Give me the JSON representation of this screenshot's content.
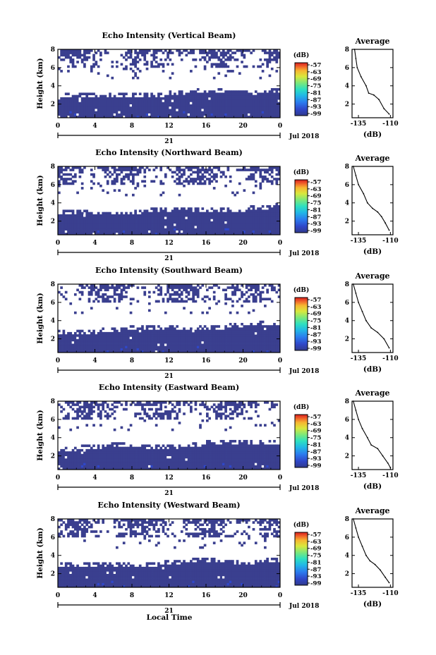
{
  "chart_data": [
    {
      "type": "heatmap",
      "title": "Echo Intensity (Vertical Beam)",
      "ylabel": "Height (km)",
      "xticks": [
        "0",
        "4",
        "8",
        "12",
        "16",
        "20",
        "0"
      ],
      "xlim": [
        0,
        24
      ],
      "yticks": [
        "2",
        "4",
        "6",
        "8"
      ],
      "ylim": [
        0.5,
        8
      ],
      "date_labels": {
        "day": "21",
        "month_year": "Jul 2018"
      },
      "colorbar": {
        "unit": "(dB)",
        "ticks": [
          "-57",
          "-63",
          "-69",
          "-75",
          "-81",
          "-87",
          "-93",
          "-99"
        ],
        "range": [
          -99,
          -57
        ]
      },
      "profile": {
        "title": "Average",
        "xlabel": "(dB)",
        "xticks": [
          "-135",
          "-110"
        ],
        "xlim": [
          -140,
          -108
        ],
        "yticks": [
          "2",
          "4",
          "6",
          "8"
        ],
        "ylim": [
          0.5,
          8
        ],
        "points": [
          [
            -138,
            8.0
          ],
          [
            -137,
            7.0
          ],
          [
            -136,
            6.0
          ],
          [
            -133,
            5.0
          ],
          [
            -129,
            4.0
          ],
          [
            -127,
            3.2
          ],
          [
            -123,
            3.0
          ],
          [
            -119,
            2.5
          ],
          [
            -115,
            1.5
          ],
          [
            -111,
            0.9
          ]
        ]
      }
    },
    {
      "type": "heatmap",
      "title": "Echo Intensity (Northward Beam)",
      "ylabel": "Height (km)",
      "xticks": [
        "0",
        "4",
        "8",
        "12",
        "16",
        "20",
        "0"
      ],
      "xlim": [
        0,
        24
      ],
      "yticks": [
        "2",
        "4",
        "6",
        "8"
      ],
      "ylim": [
        0.5,
        8
      ],
      "date_labels": {
        "day": "21",
        "month_year": "Jul 2018"
      },
      "colorbar": {
        "unit": "(dB)",
        "ticks": [
          "-57",
          "-63",
          "-69",
          "-75",
          "-81",
          "-87",
          "-93",
          "-99"
        ],
        "range": [
          -99,
          -57
        ]
      },
      "profile": {
        "title": "Average",
        "xlabel": "(dB)",
        "xticks": [
          "-135",
          "-110"
        ],
        "xlim": [
          -140,
          -108
        ],
        "yticks": [
          "2",
          "4",
          "6",
          "8"
        ],
        "ylim": [
          0.5,
          8
        ],
        "points": [
          [
            -139,
            8.0
          ],
          [
            -137,
            7.0
          ],
          [
            -135,
            6.0
          ],
          [
            -131,
            5.0
          ],
          [
            -128,
            4.0
          ],
          [
            -124,
            3.4
          ],
          [
            -120,
            3.0
          ],
          [
            -117,
            2.5
          ],
          [
            -114,
            1.8
          ],
          [
            -111,
            1.0
          ]
        ]
      }
    },
    {
      "type": "heatmap",
      "title": "Echo Intensity (Southward Beam)",
      "ylabel": "Height (km)",
      "xticks": [
        "0",
        "4",
        "8",
        "12",
        "16",
        "20",
        "0"
      ],
      "xlim": [
        0,
        24
      ],
      "yticks": [
        "2",
        "4",
        "6",
        "8"
      ],
      "ylim": [
        0.5,
        8
      ],
      "date_labels": {
        "day": "21",
        "month_year": "Jul 2018"
      },
      "colorbar": {
        "unit": "(dB)",
        "ticks": [
          "-57",
          "-63",
          "-69",
          "-75",
          "-81",
          "-87",
          "-93",
          "-99"
        ],
        "range": [
          -99,
          -57
        ]
      },
      "profile": {
        "title": "Average",
        "xlabel": "(dB)",
        "xticks": [
          "-135",
          "-110"
        ],
        "xlim": [
          -140,
          -108
        ],
        "yticks": [
          "2",
          "4",
          "6",
          "8"
        ],
        "ylim": [
          0.5,
          8
        ],
        "points": [
          [
            -139,
            8.0
          ],
          [
            -137,
            7.0
          ],
          [
            -135,
            6.0
          ],
          [
            -132,
            5.0
          ],
          [
            -129,
            4.0
          ],
          [
            -125,
            3.2
          ],
          [
            -120,
            2.7
          ],
          [
            -115,
            2.0
          ],
          [
            -111,
            1.0
          ]
        ]
      }
    },
    {
      "type": "heatmap",
      "title": "Echo Intensity (Eastward Beam)",
      "ylabel": "Height (km)",
      "xticks": [
        "0",
        "4",
        "8",
        "12",
        "16",
        "20",
        "0"
      ],
      "xlim": [
        0,
        24
      ],
      "yticks": [
        "2",
        "4",
        "6",
        "8"
      ],
      "ylim": [
        0.5,
        8
      ],
      "date_labels": {
        "day": "21",
        "month_year": "Jul 2018"
      },
      "colorbar": {
        "unit": "(dB)",
        "ticks": [
          "-57",
          "-63",
          "-69",
          "-75",
          "-81",
          "-87",
          "-93",
          "-99"
        ],
        "range": [
          -99,
          -57
        ]
      },
      "profile": {
        "title": "Average",
        "xlabel": "(dB)",
        "xticks": [
          "-135",
          "-110"
        ],
        "xlim": [
          -140,
          -108
        ],
        "yticks": [
          "2",
          "4",
          "6",
          "8"
        ],
        "ylim": [
          0.5,
          8
        ],
        "points": [
          [
            -139,
            8.0
          ],
          [
            -137,
            7.0
          ],
          [
            -135,
            6.0
          ],
          [
            -132,
            5.0
          ],
          [
            -128,
            4.0
          ],
          [
            -125,
            3.2
          ],
          [
            -120,
            2.8
          ],
          [
            -116,
            2.0
          ],
          [
            -112,
            1.2
          ],
          [
            -110,
            0.7
          ]
        ]
      }
    },
    {
      "type": "heatmap",
      "title": "Echo Intensity (Westward Beam)",
      "ylabel": "Height (km)",
      "xticks": [
        "0",
        "4",
        "8",
        "12",
        "16",
        "20",
        "0"
      ],
      "xlim": [
        0,
        24
      ],
      "yticks": [
        "2",
        "4",
        "6",
        "8"
      ],
      "ylim": [
        0.5,
        8
      ],
      "date_labels": {
        "day": "21",
        "month_year": "Jul 2018"
      },
      "colorbar": {
        "unit": "(dB)",
        "ticks": [
          "-57",
          "-63",
          "-69",
          "-75",
          "-81",
          "-87",
          "-93",
          "-99"
        ],
        "range": [
          -99,
          -57
        ]
      },
      "profile": {
        "title": "Average",
        "xlabel": "(dB)",
        "xticks": [
          "-135",
          "-110"
        ],
        "xlim": [
          -140,
          -108
        ],
        "yticks": [
          "2",
          "4",
          "6",
          "8"
        ],
        "ylim": [
          0.5,
          8
        ],
        "points": [
          [
            -139,
            8.0
          ],
          [
            -137,
            7.0
          ],
          [
            -135,
            6.0
          ],
          [
            -132,
            5.0
          ],
          [
            -129,
            4.0
          ],
          [
            -126,
            3.4
          ],
          [
            -122,
            3.0
          ],
          [
            -118,
            2.4
          ],
          [
            -114,
            1.6
          ],
          [
            -111,
            1.0
          ]
        ]
      }
    }
  ],
  "xlabel": "Local Time",
  "colors": {
    "low": "#3a3f8f",
    "accent": "#3050e0",
    "colormap": [
      "#313a8c",
      "#2f47c9",
      "#2b7bee",
      "#22b7e6",
      "#2ee0c0",
      "#7de87a",
      "#d9e83d",
      "#f7b731",
      "#f0622a",
      "#d81e1e"
    ]
  }
}
